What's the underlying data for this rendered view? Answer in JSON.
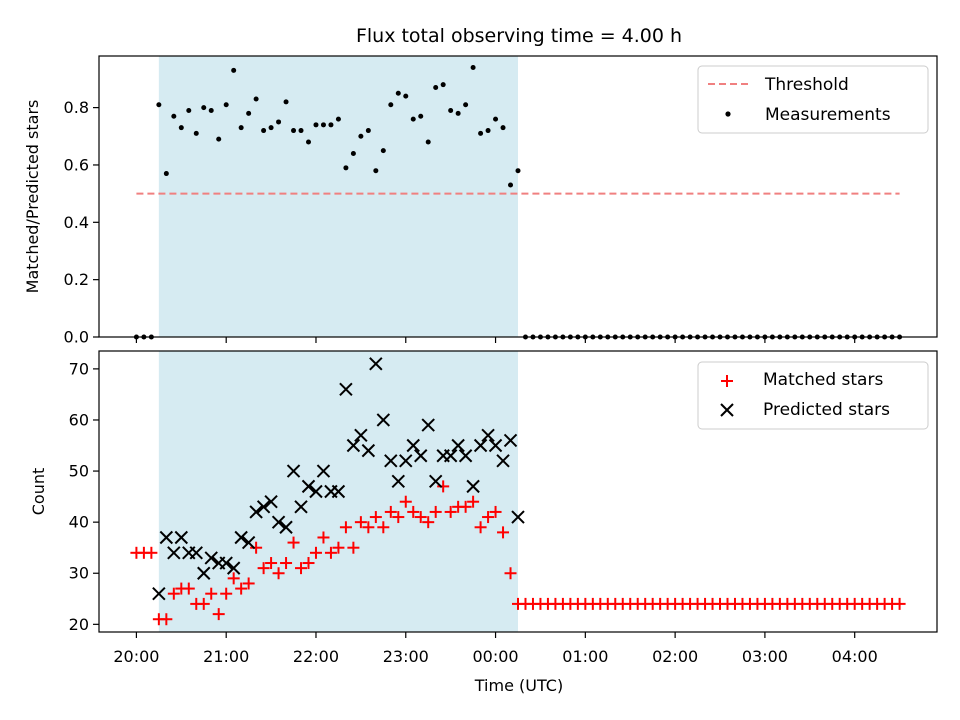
{
  "chart_data": [
    {
      "type": "scatter",
      "title": "Flux total observing time = 4.00 h",
      "ylabel": "Matched/Predicted stars",
      "xlabel": "",
      "x_unit": "time of night (UTC)",
      "ylim": [
        0,
        0.98
      ],
      "y_ticks": [
        "0.0",
        "0.2",
        "0.4",
        "0.6",
        "0.8"
      ],
      "grid": false,
      "legend_position": "top-right",
      "shaded_interval": [
        "20:15",
        "00:15"
      ],
      "colors": {
        "threshold": "#f08080",
        "measurements": "#000000",
        "shade": "#add8e6"
      },
      "series": [
        {
          "name": "Threshold",
          "style": "dashed-line",
          "x": [
            "20:00",
            "04:30"
          ],
          "y": [
            0.5,
            0.5
          ]
        },
        {
          "name": "Measurements",
          "style": "dot",
          "x": [
            "20:00",
            "20:05",
            "20:10",
            "20:15",
            "20:20",
            "20:25",
            "20:30",
            "20:35",
            "20:40",
            "20:45",
            "20:50",
            "20:55",
            "21:00",
            "21:05",
            "21:10",
            "21:15",
            "21:20",
            "21:25",
            "21:30",
            "21:35",
            "21:40",
            "21:45",
            "21:50",
            "21:55",
            "22:00",
            "22:05",
            "22:10",
            "22:15",
            "22:20",
            "22:25",
            "22:30",
            "22:35",
            "22:40",
            "22:45",
            "22:50",
            "22:55",
            "23:00",
            "23:05",
            "23:10",
            "23:15",
            "23:20",
            "23:25",
            "23:30",
            "23:35",
            "23:40",
            "23:45",
            "23:50",
            "23:55",
            "00:00",
            "00:05",
            "00:10",
            "00:15",
            "00:20",
            "00:25",
            "00:30",
            "00:35",
            "00:40",
            "00:45",
            "00:50",
            "00:55",
            "01:00",
            "01:05",
            "01:10",
            "01:15",
            "01:20",
            "01:25",
            "01:30",
            "01:35",
            "01:40",
            "01:45",
            "01:50",
            "01:55",
            "02:00",
            "02:05",
            "02:10",
            "02:15",
            "02:20",
            "02:25",
            "02:30",
            "02:35",
            "02:40",
            "02:45",
            "02:50",
            "02:55",
            "03:00",
            "03:05",
            "03:10",
            "03:15",
            "03:20",
            "03:25",
            "03:30",
            "03:35",
            "03:40",
            "03:45",
            "03:50",
            "03:55",
            "04:00",
            "04:05",
            "04:10",
            "04:15",
            "04:20",
            "04:25",
            "04:30"
          ],
          "y": [
            0,
            0,
            0,
            0.81,
            0.57,
            0.77,
            0.73,
            0.79,
            0.71,
            0.8,
            0.79,
            0.69,
            0.81,
            0.93,
            0.73,
            0.78,
            0.83,
            0.72,
            0.73,
            0.75,
            0.82,
            0.72,
            0.72,
            0.68,
            0.74,
            0.74,
            0.74,
            0.76,
            0.59,
            0.64,
            0.7,
            0.72,
            0.58,
            0.65,
            0.81,
            0.85,
            0.84,
            0.76,
            0.77,
            0.68,
            0.87,
            0.88,
            0.79,
            0.78,
            0.81,
            0.94,
            0.71,
            0.72,
            0.76,
            0.73,
            0.53,
            0.58,
            0,
            0,
            0,
            0,
            0,
            0,
            0,
            0,
            0,
            0,
            0,
            0,
            0,
            0,
            0,
            0,
            0,
            0,
            0,
            0,
            0,
            0,
            0,
            0,
            0,
            0,
            0,
            0,
            0,
            0,
            0,
            0,
            0,
            0,
            0,
            0,
            0,
            0,
            0,
            0,
            0,
            0,
            0,
            0,
            0,
            0,
            0,
            0,
            0,
            0,
            0
          ]
        }
      ]
    },
    {
      "type": "scatter",
      "title": "",
      "ylabel": "Count",
      "xlabel": "Time (UTC)",
      "ylim": [
        18.5,
        73.5
      ],
      "y_ticks": [
        "20",
        "30",
        "40",
        "50",
        "60",
        "70"
      ],
      "x_ticks": [
        "20:00",
        "21:00",
        "22:00",
        "23:00",
        "00:00",
        "01:00",
        "02:00",
        "03:00",
        "04:00"
      ],
      "grid": false,
      "legend_position": "top-right",
      "shaded_interval": [
        "20:15",
        "00:15"
      ],
      "colors": {
        "matched": "#ff0000",
        "predicted": "#000000",
        "shade": "#add8e6"
      },
      "series": [
        {
          "name": "Matched stars",
          "marker": "plus",
          "x": [
            "20:00",
            "20:05",
            "20:10",
            "20:15",
            "20:20",
            "20:25",
            "20:30",
            "20:35",
            "20:40",
            "20:45",
            "20:50",
            "20:55",
            "21:00",
            "21:05",
            "21:10",
            "21:15",
            "21:20",
            "21:25",
            "21:30",
            "21:35",
            "21:40",
            "21:45",
            "21:50",
            "21:55",
            "22:00",
            "22:05",
            "22:10",
            "22:15",
            "22:20",
            "22:25",
            "22:30",
            "22:35",
            "22:40",
            "22:45",
            "22:50",
            "22:55",
            "23:00",
            "23:05",
            "23:10",
            "23:15",
            "23:20",
            "23:25",
            "23:30",
            "23:35",
            "23:40",
            "23:45",
            "23:50",
            "23:55",
            "00:00",
            "00:05",
            "00:10",
            "00:15",
            "00:20",
            "00:25",
            "00:30",
            "00:35",
            "00:40",
            "00:45",
            "00:50",
            "00:55",
            "01:00",
            "01:05",
            "01:10",
            "01:15",
            "01:20",
            "01:25",
            "01:30",
            "01:35",
            "01:40",
            "01:45",
            "01:50",
            "01:55",
            "02:00",
            "02:05",
            "02:10",
            "02:15",
            "02:20",
            "02:25",
            "02:30",
            "02:35",
            "02:40",
            "02:45",
            "02:50",
            "02:55",
            "03:00",
            "03:05",
            "03:10",
            "03:15",
            "03:20",
            "03:25",
            "03:30",
            "03:35",
            "03:40",
            "03:45",
            "03:50",
            "03:55",
            "04:00",
            "04:05",
            "04:10",
            "04:15",
            "04:20",
            "04:25",
            "04:30"
          ],
          "y": [
            34,
            34,
            34,
            21,
            21,
            26,
            27,
            27,
            24,
            24,
            26,
            22,
            26,
            29,
            27,
            28,
            35,
            31,
            32,
            30,
            32,
            36,
            31,
            32,
            34,
            37,
            34,
            35,
            39,
            35,
            40,
            39,
            41,
            39,
            42,
            41,
            44,
            42,
            41,
            40,
            42,
            47,
            42,
            43,
            43,
            44,
            39,
            41,
            42,
            38,
            30,
            24,
            24,
            24,
            24,
            24,
            24,
            24,
            24,
            24,
            24,
            24,
            24,
            24,
            24,
            24,
            24,
            24,
            24,
            24,
            24,
            24,
            24,
            24,
            24,
            24,
            24,
            24,
            24,
            24,
            24,
            24,
            24,
            24,
            24,
            24,
            24,
            24,
            24,
            24,
            24,
            24,
            24,
            24,
            24,
            24,
            24,
            24,
            24,
            24,
            24,
            24,
            24
          ]
        },
        {
          "name": "Predicted stars",
          "marker": "x",
          "x": [
            "20:15",
            "20:20",
            "20:25",
            "20:30",
            "20:35",
            "20:40",
            "20:45",
            "20:50",
            "20:55",
            "21:00",
            "21:05",
            "21:10",
            "21:15",
            "21:20",
            "21:25",
            "21:30",
            "21:35",
            "21:40",
            "21:45",
            "21:50",
            "21:55",
            "22:00",
            "22:05",
            "22:10",
            "22:15",
            "22:20",
            "22:25",
            "22:30",
            "22:35",
            "22:40",
            "22:45",
            "22:50",
            "22:55",
            "23:00",
            "23:05",
            "23:10",
            "23:15",
            "23:20",
            "23:25",
            "23:30",
            "23:35",
            "23:40",
            "23:45",
            "23:50",
            "23:55",
            "00:00",
            "00:05",
            "00:10",
            "00:15"
          ],
          "y": [
            26,
            37,
            34,
            37,
            34,
            34,
            30,
            33,
            32,
            32,
            31,
            37,
            36,
            42,
            43,
            44,
            40,
            39,
            50,
            43,
            47,
            46,
            50,
            46,
            46,
            66,
            55,
            57,
            54,
            71,
            60,
            52,
            48,
            52,
            55,
            53,
            59,
            48,
            53,
            53,
            55,
            53,
            47,
            55,
            57,
            55,
            52,
            56,
            41
          ]
        }
      ]
    }
  ]
}
